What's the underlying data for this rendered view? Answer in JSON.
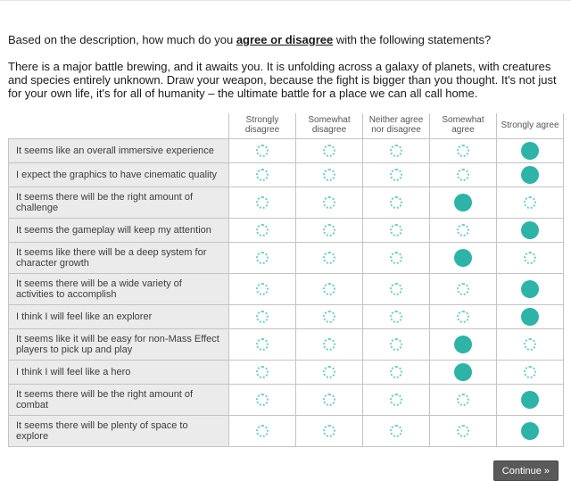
{
  "page": {
    "question": {
      "prefix": "Based on the description, how much do you ",
      "emphasis": "agree or disagree",
      "suffix": " with the following statements?"
    },
    "description": "There is a major battle brewing, and it awaits you. It is unfolding across a galaxy of planets, with creatures and species entirely unknown. Draw your weapon, because the fight is bigger than you thought. It's not just for your own life, it's for all of humanity – the ultimate battle for a place we can all call home.",
    "continue_label": "Continue »"
  },
  "matrix": {
    "columns": [
      "Strongly disagree",
      "Somewhat disagree",
      "Neither agree nor disagree",
      "Somewhat agree",
      "Strongly agree"
    ],
    "rows": [
      {
        "statement": "It seems like an overall immersive experience",
        "selected": 4
      },
      {
        "statement": "I expect the graphics to have cinematic quality",
        "selected": 4
      },
      {
        "statement": "It seems there will be the right amount of challenge",
        "selected": 3
      },
      {
        "statement": "It seems the gameplay will keep my attention",
        "selected": 4
      },
      {
        "statement": "It seems like there will be a deep system for character growth",
        "selected": 3
      },
      {
        "statement": "It seems there will be a wide variety of activities to accomplish",
        "selected": 4
      },
      {
        "statement": "I think I will feel like an explorer",
        "selected": 4
      },
      {
        "statement": "It seems like it will be easy for non-Mass Effect players to pick up and play",
        "selected": 3
      },
      {
        "statement": "I think I will feel like a hero",
        "selected": 3
      },
      {
        "statement": "It seems there will be the right amount of combat",
        "selected": 4
      },
      {
        "statement": "It seems there will be plenty of space to explore",
        "selected": 4
      }
    ]
  },
  "colors": {
    "accent_teal": "#2db4a6",
    "row_label_bg": "#ebebeb",
    "grid_line": "#c4c4c4",
    "button_bg": "#5a5a5a",
    "button_text": "#ffffff"
  }
}
